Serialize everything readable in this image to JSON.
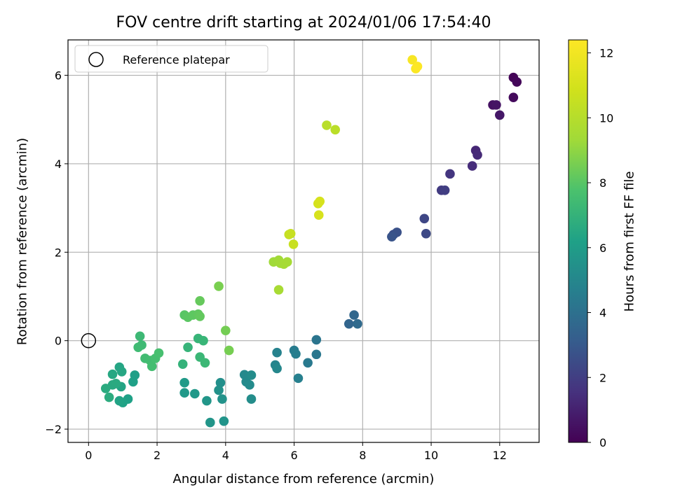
{
  "chart_data": {
    "type": "scatter",
    "title": "FOV centre drift starting at 2024/01/06 17:54:40",
    "xlabel": "Angular distance from reference (arcmin)",
    "ylabel": "Rotation from reference (arcmin)",
    "xlim": [
      -0.6,
      13.15
    ],
    "ylim": [
      -2.3,
      6.8
    ],
    "xticks": [
      0,
      2,
      4,
      6,
      8,
      10,
      12
    ],
    "yticks": [
      -2,
      0,
      2,
      4,
      6
    ],
    "grid": true,
    "legend": {
      "position": "top-left",
      "entries": [
        "Reference platepar"
      ]
    },
    "reference_point": {
      "x": 0,
      "y": 0
    },
    "colorbar": {
      "label": "Hours from first FF file",
      "range": [
        0,
        12.4
      ],
      "ticks": [
        0,
        2,
        4,
        6,
        8,
        10,
        12
      ],
      "colormap": "viridis"
    },
    "points": [
      {
        "x": 12.4,
        "y": 5.95,
        "c": 0.1
      },
      {
        "x": 12.5,
        "y": 5.85,
        "c": 0.2
      },
      {
        "x": 12.4,
        "y": 5.5,
        "c": 0.3
      },
      {
        "x": 11.8,
        "y": 5.33,
        "c": 0.5
      },
      {
        "x": 11.9,
        "y": 5.33,
        "c": 0.6
      },
      {
        "x": 12.0,
        "y": 5.1,
        "c": 0.7
      },
      {
        "x": 11.3,
        "y": 4.3,
        "c": 1.2
      },
      {
        "x": 11.35,
        "y": 4.2,
        "c": 1.3
      },
      {
        "x": 11.2,
        "y": 3.95,
        "c": 1.4
      },
      {
        "x": 10.55,
        "y": 3.77,
        "c": 1.7
      },
      {
        "x": 10.3,
        "y": 3.4,
        "c": 1.9
      },
      {
        "x": 10.4,
        "y": 3.4,
        "c": 2.0
      },
      {
        "x": 9.8,
        "y": 2.76,
        "c": 2.3
      },
      {
        "x": 9.85,
        "y": 2.42,
        "c": 2.4
      },
      {
        "x": 8.9,
        "y": 2.4,
        "c": 2.6
      },
      {
        "x": 9.0,
        "y": 2.45,
        "c": 2.7
      },
      {
        "x": 8.85,
        "y": 2.35,
        "c": 2.8
      },
      {
        "x": 7.6,
        "y": 0.38,
        "c": 3.5
      },
      {
        "x": 7.75,
        "y": 0.58,
        "c": 3.6
      },
      {
        "x": 7.85,
        "y": 0.38,
        "c": 3.7
      },
      {
        "x": 6.65,
        "y": 0.02,
        "c": 4.2
      },
      {
        "x": 6.65,
        "y": -0.31,
        "c": 4.3
      },
      {
        "x": 6.4,
        "y": -0.5,
        "c": 4.4
      },
      {
        "x": 6.0,
        "y": -0.22,
        "c": 4.5
      },
      {
        "x": 6.05,
        "y": -0.3,
        "c": 4.6
      },
      {
        "x": 6.12,
        "y": -0.85,
        "c": 4.7
      },
      {
        "x": 5.5,
        "y": -0.27,
        "c": 4.8
      },
      {
        "x": 5.45,
        "y": -0.55,
        "c": 4.9
      },
      {
        "x": 5.5,
        "y": -0.63,
        "c": 5.0
      },
      {
        "x": 4.55,
        "y": -0.77,
        "c": 5.1
      },
      {
        "x": 4.6,
        "y": -0.93,
        "c": 5.15
      },
      {
        "x": 4.7,
        "y": -1.0,
        "c": 5.2
      },
      {
        "x": 4.75,
        "y": -0.78,
        "c": 5.25
      },
      {
        "x": 4.75,
        "y": -1.32,
        "c": 5.3
      },
      {
        "x": 3.85,
        "y": -0.95,
        "c": 5.4
      },
      {
        "x": 3.8,
        "y": -1.12,
        "c": 5.45
      },
      {
        "x": 3.9,
        "y": -1.32,
        "c": 5.5
      },
      {
        "x": 3.95,
        "y": -1.82,
        "c": 5.6
      },
      {
        "x": 3.55,
        "y": -1.85,
        "c": 5.65
      },
      {
        "x": 3.45,
        "y": -1.36,
        "c": 5.7
      },
      {
        "x": 3.1,
        "y": -1.2,
        "c": 5.8
      },
      {
        "x": 2.8,
        "y": -1.18,
        "c": 5.85
      },
      {
        "x": 2.8,
        "y": -0.95,
        "c": 5.9
      },
      {
        "x": 1.35,
        "y": -0.78,
        "c": 6.1
      },
      {
        "x": 1.3,
        "y": -0.93,
        "c": 6.15
      },
      {
        "x": 1.15,
        "y": -1.32,
        "c": 6.2
      },
      {
        "x": 1.0,
        "y": -1.4,
        "c": 6.25
      },
      {
        "x": 0.9,
        "y": -1.36,
        "c": 6.3
      },
      {
        "x": 0.95,
        "y": -1.04,
        "c": 6.35
      },
      {
        "x": 0.9,
        "y": -0.6,
        "c": 6.4
      },
      {
        "x": 0.97,
        "y": -0.7,
        "c": 6.45
      },
      {
        "x": 0.7,
        "y": -0.76,
        "c": 6.5
      },
      {
        "x": 0.7,
        "y": -1.0,
        "c": 6.55
      },
      {
        "x": 0.8,
        "y": -0.97,
        "c": 6.6
      },
      {
        "x": 0.5,
        "y": -1.08,
        "c": 6.65
      },
      {
        "x": 0.6,
        "y": -1.28,
        "c": 6.7
      },
      {
        "x": 2.75,
        "y": -0.53,
        "c": 7.0
      },
      {
        "x": 2.9,
        "y": -0.15,
        "c": 7.05
      },
      {
        "x": 3.2,
        "y": 0.05,
        "c": 7.1
      },
      {
        "x": 3.35,
        "y": 0.0,
        "c": 7.15
      },
      {
        "x": 3.25,
        "y": -0.37,
        "c": 7.2
      },
      {
        "x": 3.4,
        "y": -0.5,
        "c": 7.25
      },
      {
        "x": 1.5,
        "y": 0.1,
        "c": 7.3
      },
      {
        "x": 1.55,
        "y": -0.1,
        "c": 7.35
      },
      {
        "x": 1.45,
        "y": -0.15,
        "c": 7.4
      },
      {
        "x": 1.65,
        "y": -0.4,
        "c": 7.45
      },
      {
        "x": 1.8,
        "y": -0.45,
        "c": 7.5
      },
      {
        "x": 1.85,
        "y": -0.58,
        "c": 7.55
      },
      {
        "x": 1.95,
        "y": -0.4,
        "c": 7.6
      },
      {
        "x": 2.05,
        "y": -0.28,
        "c": 7.65
      },
      {
        "x": 2.8,
        "y": 0.58,
        "c": 8.0
      },
      {
        "x": 2.9,
        "y": 0.53,
        "c": 8.05
      },
      {
        "x": 3.05,
        "y": 0.58,
        "c": 8.1
      },
      {
        "x": 3.2,
        "y": 0.6,
        "c": 8.15
      },
      {
        "x": 3.25,
        "y": 0.55,
        "c": 8.2
      },
      {
        "x": 3.25,
        "y": 0.9,
        "c": 8.25
      },
      {
        "x": 4.0,
        "y": 0.23,
        "c": 8.5
      },
      {
        "x": 4.1,
        "y": -0.22,
        "c": 8.55
      },
      {
        "x": 3.8,
        "y": 1.23,
        "c": 8.6
      },
      {
        "x": 5.4,
        "y": 1.78,
        "c": 9.3
      },
      {
        "x": 5.55,
        "y": 1.82,
        "c": 9.35
      },
      {
        "x": 5.6,
        "y": 1.75,
        "c": 9.4
      },
      {
        "x": 5.7,
        "y": 1.73,
        "c": 9.45
      },
      {
        "x": 5.8,
        "y": 1.78,
        "c": 9.5
      },
      {
        "x": 5.55,
        "y": 1.15,
        "c": 9.55
      },
      {
        "x": 6.95,
        "y": 4.87,
        "c": 10.1
      },
      {
        "x": 7.2,
        "y": 4.77,
        "c": 10.15
      },
      {
        "x": 5.85,
        "y": 2.4,
        "c": 10.5
      },
      {
        "x": 5.9,
        "y": 2.42,
        "c": 10.55
      },
      {
        "x": 5.98,
        "y": 2.18,
        "c": 10.6
      },
      {
        "x": 6.7,
        "y": 3.1,
        "c": 11.0
      },
      {
        "x": 6.75,
        "y": 3.15,
        "c": 11.05
      },
      {
        "x": 6.72,
        "y": 2.84,
        "c": 11.1
      },
      {
        "x": 9.45,
        "y": 6.35,
        "c": 12.2
      },
      {
        "x": 9.55,
        "y": 6.15,
        "c": 12.3
      },
      {
        "x": 9.6,
        "y": 6.2,
        "c": 12.35
      }
    ]
  }
}
